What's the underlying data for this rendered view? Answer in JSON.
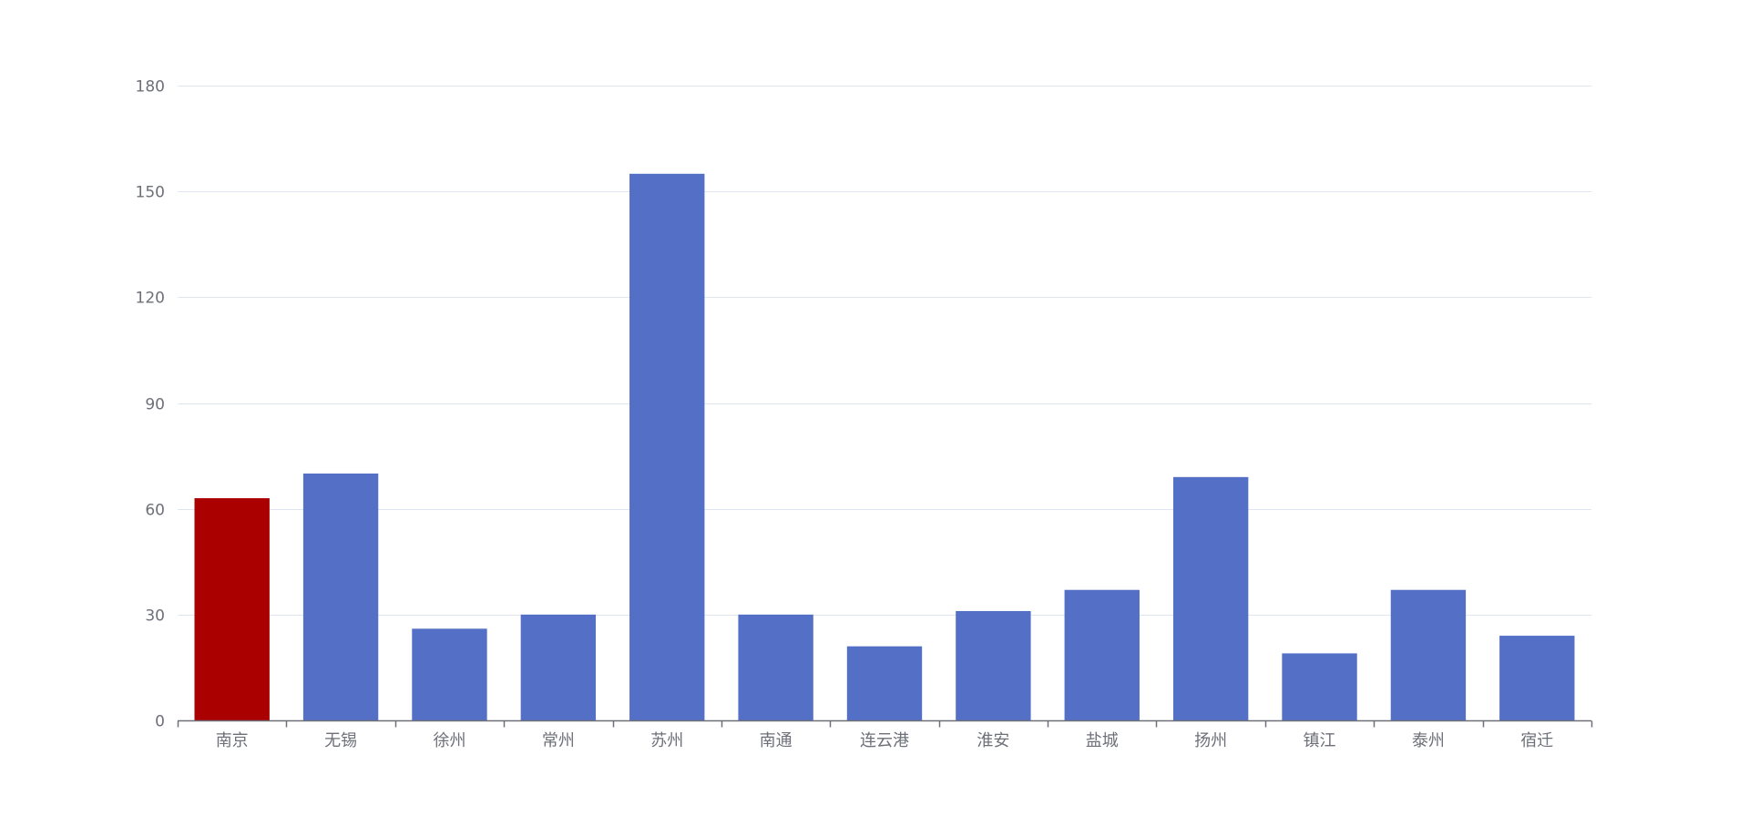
{
  "chart_data": {
    "type": "bar",
    "categories": [
      "南京",
      "无锡",
      "徐州",
      "常州",
      "苏州",
      "南通",
      "连云港",
      "淮安",
      "盐城",
      "扬州",
      "镇江",
      "泰州",
      "宿迁"
    ],
    "values": [
      63,
      70,
      26,
      30,
      155,
      30,
      21,
      31,
      37,
      69,
      19,
      37,
      24
    ],
    "highlight_index": 0,
    "title": "",
    "xlabel": "",
    "ylabel": "",
    "ylim": [
      0,
      180
    ],
    "yticks": [
      0,
      30,
      60,
      90,
      120,
      150,
      180
    ],
    "grid": true,
    "legend": "none",
    "colors": {
      "bar": "#5470c6",
      "highlight": "#aa0000",
      "grid": "#e0e6f1",
      "axis": "#6e7079",
      "label": "#6e7079"
    }
  }
}
